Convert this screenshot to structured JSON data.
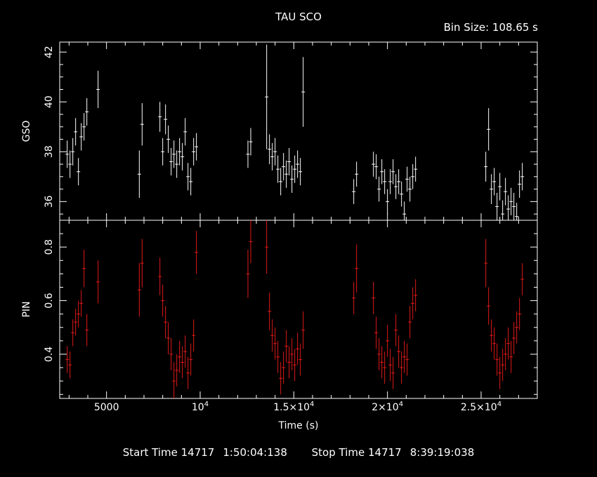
{
  "header": {
    "title": "TAU SCO",
    "bin_size": "Bin Size: 108.65 s"
  },
  "footer": {
    "start_label": "Start Time 14717",
    "start_value": "1:50:04:138",
    "stop_label": "Stop Time 14717",
    "stop_value": "8:39:19:038"
  },
  "colors": {
    "gso": "#ffffff",
    "pin": "#e01818",
    "axes": "#ffffff",
    "background": "#000000"
  },
  "chart_data": [
    {
      "type": "scatter",
      "panel": "top",
      "ylabel": "GSO",
      "xlim": [
        2500,
        28000
      ],
      "ylim": [
        35.25,
        42.4
      ],
      "yticks": [
        36,
        38,
        40,
        42
      ],
      "ytick_labels": [
        "36",
        "38",
        "40",
        "42"
      ],
      "series": [
        {
          "x": [
            2900,
            3050,
            3200,
            3350,
            3500,
            3650,
            3800,
            3950,
            4550,
            6750,
            6900,
            7850,
            8000,
            8150,
            8300,
            8450,
            8600,
            8750,
            8900,
            9050,
            9200,
            9350,
            9500,
            9650,
            9800,
            12550,
            12700,
            13550,
            13700,
            13850,
            14000,
            14150,
            14300,
            14450,
            14600,
            14750,
            14900,
            15050,
            15200,
            15350,
            15500,
            18200,
            18350,
            19250,
            19400,
            19550,
            19700,
            19850,
            20000,
            20150,
            20300,
            20450,
            20600,
            20750,
            20900,
            21050,
            21200,
            21350,
            21500,
            25250,
            25400,
            25550,
            25700,
            25850,
            26000,
            26150,
            26300,
            26450,
            26600,
            26750,
            26900,
            27050,
            27200
          ],
          "y": [
            37.9,
            37.5,
            38.0,
            38.8,
            37.2,
            38.6,
            39.0,
            39.6,
            40.5,
            37.1,
            39.1,
            39.4,
            38.0,
            39.3,
            38.5,
            37.6,
            37.9,
            37.5,
            38.0,
            37.8,
            38.8,
            37.0,
            36.8,
            38.0,
            38.2,
            37.9,
            38.4,
            40.2,
            38.1,
            37.8,
            38.0,
            37.3,
            36.8,
            37.4,
            37.1,
            37.6,
            36.9,
            37.3,
            37.5,
            37.2,
            40.4,
            36.4,
            37.1,
            37.5,
            37.4,
            36.5,
            37.2,
            36.8,
            36.0,
            36.8,
            37.2,
            36.6,
            36.8,
            36.3,
            35.5,
            36.9,
            36.5,
            37.0,
            37.3,
            37.4,
            38.9,
            36.5,
            36.8,
            35.8,
            36.6,
            35.5,
            36.4,
            35.7,
            36.0,
            35.8,
            35.4,
            36.7,
            37.0
          ],
          "yerr": [
            0.55,
            0.55,
            0.55,
            0.55,
            0.55,
            0.55,
            0.55,
            0.55,
            0.75,
            0.95,
            0.85,
            0.6,
            0.55,
            0.6,
            0.55,
            0.55,
            0.55,
            0.55,
            0.55,
            0.55,
            0.55,
            0.55,
            0.55,
            0.55,
            0.55,
            0.55,
            0.55,
            2.1,
            0.6,
            0.55,
            0.55,
            0.55,
            0.55,
            0.55,
            0.55,
            0.55,
            0.55,
            0.55,
            0.55,
            0.55,
            1.4,
            0.5,
            0.5,
            0.5,
            0.5,
            0.5,
            0.5,
            0.5,
            0.5,
            0.5,
            0.5,
            0.5,
            0.5,
            0.5,
            0.5,
            0.5,
            0.5,
            0.5,
            0.5,
            0.6,
            0.85,
            0.6,
            0.55,
            0.55,
            0.55,
            0.55,
            0.55,
            0.55,
            0.55,
            0.55,
            0.55,
            0.55,
            0.55
          ]
        }
      ]
    },
    {
      "type": "scatter",
      "panel": "bottom",
      "ylabel": "PIN",
      "xlabel": "Time (s)",
      "xlim": [
        2500,
        28000
      ],
      "ylim": [
        0.235,
        0.9
      ],
      "xticks": [
        5000,
        10000,
        15000,
        20000,
        25000
      ],
      "xtick_labels": [
        "5000",
        "10^4",
        "1.5×10^4",
        "2×10^4",
        "2.5×10^4"
      ],
      "yticks": [
        0.4,
        0.6,
        0.8
      ],
      "ytick_labels": [
        "0.4",
        "0.6",
        "0.8"
      ],
      "series": [
        {
          "x": [
            2900,
            3050,
            3200,
            3350,
            3500,
            3650,
            3800,
            3950,
            4550,
            6750,
            6900,
            7850,
            8000,
            8150,
            8300,
            8450,
            8600,
            8750,
            8900,
            9050,
            9200,
            9350,
            9500,
            9650,
            9800,
            12550,
            12700,
            13550,
            13700,
            13850,
            14000,
            14150,
            14300,
            14450,
            14600,
            14750,
            14900,
            15050,
            15200,
            15350,
            15500,
            18200,
            18350,
            19250,
            19400,
            19550,
            19700,
            19850,
            20000,
            20150,
            20300,
            20450,
            20600,
            20750,
            20900,
            21050,
            21200,
            21350,
            21500,
            25250,
            25400,
            25550,
            25700,
            25850,
            26000,
            26150,
            26300,
            26450,
            26600,
            26750,
            26900,
            27050,
            27200
          ],
          "y": [
            0.38,
            0.36,
            0.48,
            0.52,
            0.55,
            0.59,
            0.72,
            0.49,
            0.67,
            0.64,
            0.74,
            0.69,
            0.6,
            0.52,
            0.46,
            0.4,
            0.3,
            0.34,
            0.39,
            0.37,
            0.41,
            0.33,
            0.38,
            0.47,
            0.78,
            0.7,
            0.82,
            0.8,
            0.56,
            0.47,
            0.44,
            0.39,
            0.31,
            0.35,
            0.43,
            0.37,
            0.4,
            0.36,
            0.42,
            0.38,
            0.49,
            0.61,
            0.72,
            0.61,
            0.48,
            0.4,
            0.37,
            0.35,
            0.45,
            0.36,
            0.33,
            0.49,
            0.41,
            0.35,
            0.39,
            0.38,
            0.52,
            0.59,
            0.62,
            0.74,
            0.58,
            0.47,
            0.44,
            0.38,
            0.33,
            0.36,
            0.4,
            0.44,
            0.39,
            0.46,
            0.5,
            0.55,
            0.68
          ],
          "yerr": [
            0.05,
            0.05,
            0.05,
            0.05,
            0.05,
            0.05,
            0.07,
            0.06,
            0.08,
            0.1,
            0.09,
            0.07,
            0.06,
            0.06,
            0.06,
            0.06,
            0.07,
            0.06,
            0.06,
            0.06,
            0.06,
            0.06,
            0.06,
            0.06,
            0.08,
            0.09,
            0.08,
            0.1,
            0.07,
            0.06,
            0.06,
            0.06,
            0.06,
            0.06,
            0.06,
            0.06,
            0.06,
            0.06,
            0.06,
            0.06,
            0.07,
            0.06,
            0.09,
            0.06,
            0.06,
            0.06,
            0.06,
            0.06,
            0.06,
            0.06,
            0.06,
            0.06,
            0.06,
            0.06,
            0.06,
            0.06,
            0.06,
            0.06,
            0.06,
            0.09,
            0.07,
            0.06,
            0.06,
            0.06,
            0.06,
            0.06,
            0.06,
            0.06,
            0.06,
            0.06,
            0.06,
            0.06,
            0.06
          ]
        }
      ]
    }
  ]
}
